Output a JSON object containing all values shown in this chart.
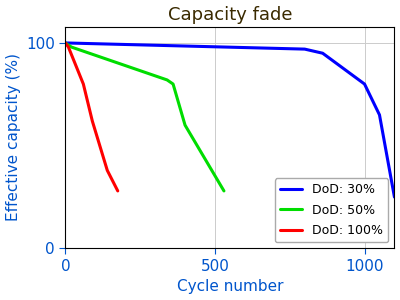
{
  "title": "Capacity fade",
  "xlabel": "Cycle number",
  "ylabel": "Effective capacity (%)",
  "xlim": [
    0,
    1100
  ],
  "ylim": [
    0,
    108
  ],
  "xticks": [
    0,
    500,
    1000
  ],
  "yticks": [
    0,
    100
  ],
  "grid": true,
  "series": [
    {
      "label": "DoD: 30%",
      "color": "#0000FF",
      "x": [
        0,
        800,
        860,
        1000,
        1050,
        1100
      ],
      "y": [
        100,
        97,
        95,
        80,
        65,
        25
      ]
    },
    {
      "label": "DoD: 50%",
      "color": "#00DD00",
      "x": [
        0,
        20,
        340,
        360,
        400,
        530
      ],
      "y": [
        100,
        98,
        82,
        80,
        60,
        28
      ]
    },
    {
      "label": "DoD: 100%",
      "color": "#FF0000",
      "x": [
        0,
        10,
        60,
        90,
        140,
        175
      ],
      "y": [
        100,
        98,
        80,
        62,
        38,
        28
      ]
    }
  ],
  "linewidth": 2.2,
  "title_color": "#3a2a00",
  "label_color": "#0055cc",
  "tick_color": "#0055cc",
  "background_color": "#ffffff",
  "grid_color": "#cccccc",
  "legend_fontsize": 9,
  "title_fontsize": 13,
  "axis_fontsize": 11,
  "tick_fontsize": 11
}
